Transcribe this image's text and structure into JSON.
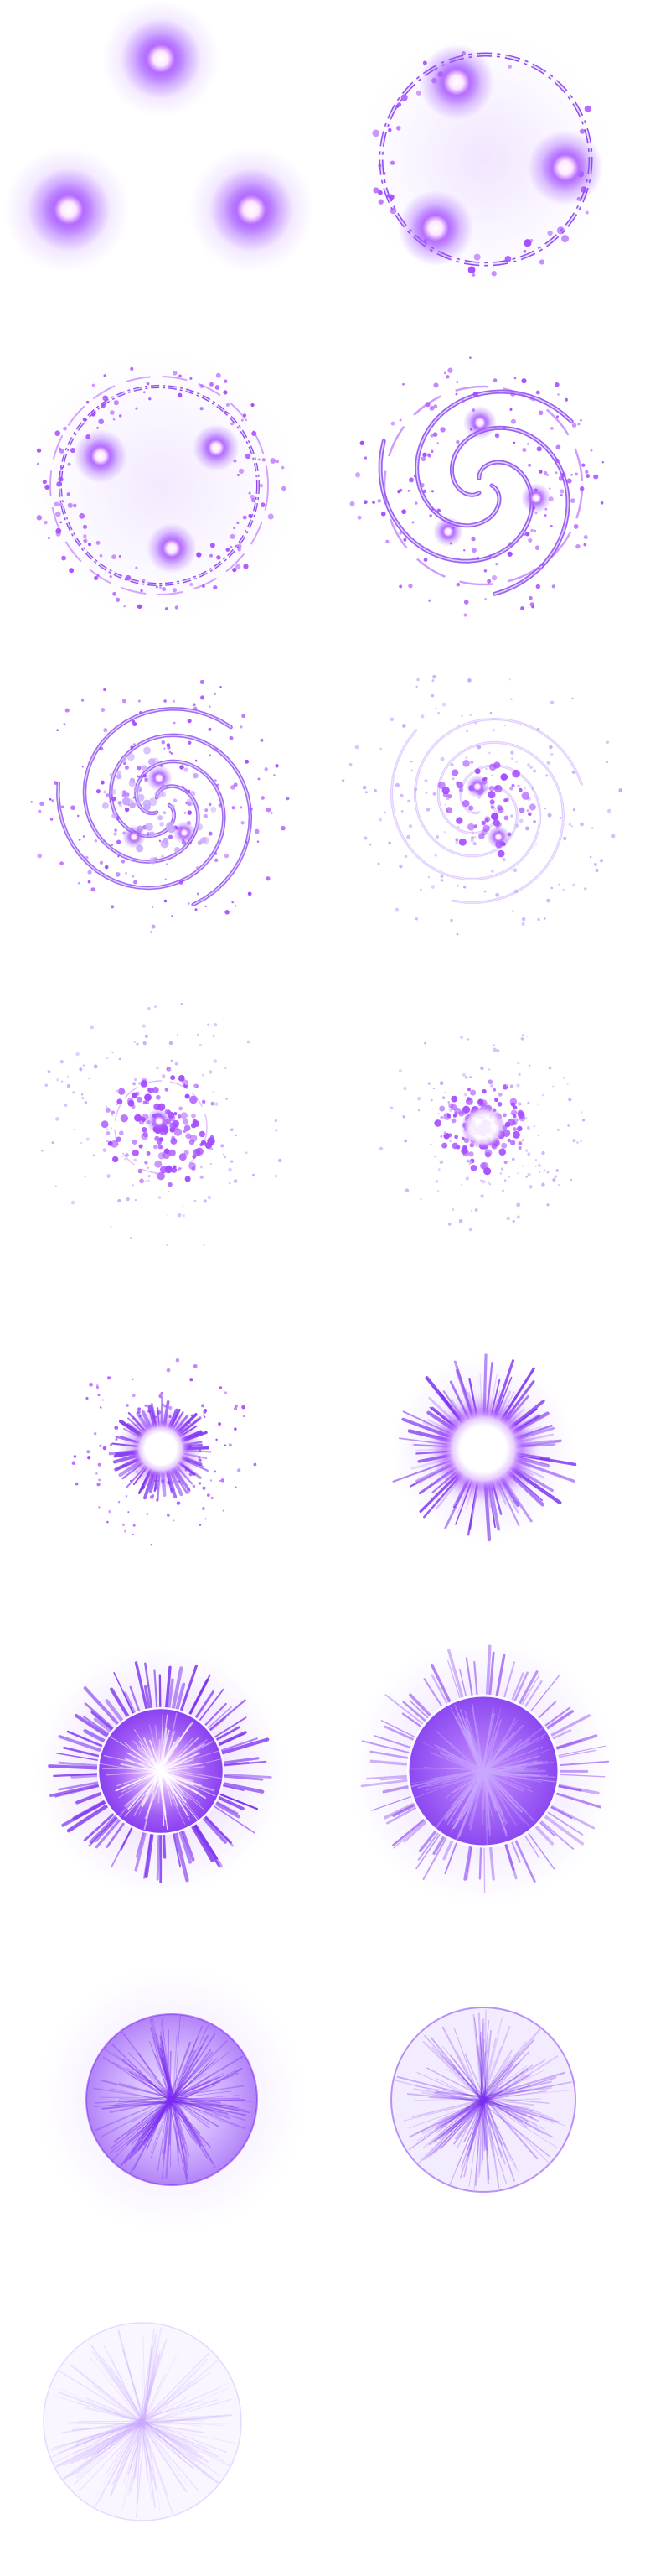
{
  "sprite_sheet": {
    "columns": 2,
    "rows": 8,
    "frame_count": 15,
    "colors": {
      "background": "#ffffff",
      "core": "#ffffff",
      "glow": "#a64dff",
      "deep": "#7a2df0",
      "pale": "#c9a8ff",
      "rim": "#ffffff"
    },
    "frames": [
      {
        "index": 1,
        "stage": "three-orbs"
      },
      {
        "index": 2,
        "stage": "orbs-linked-by-ring"
      },
      {
        "index": 3,
        "stage": "ring-with-particles"
      },
      {
        "index": 4,
        "stage": "swirl-forming"
      },
      {
        "index": 5,
        "stage": "spiral-galaxy"
      },
      {
        "index": 6,
        "stage": "spiral-fading"
      },
      {
        "index": 7,
        "stage": "particle-cluster"
      },
      {
        "index": 8,
        "stage": "particle-cluster-dense"
      },
      {
        "index": 9,
        "stage": "collapsed-core"
      },
      {
        "index": 10,
        "stage": "spiky-burst"
      },
      {
        "index": 11,
        "stage": "bright-sphere-burst"
      },
      {
        "index": 12,
        "stage": "violet-sphere"
      },
      {
        "index": 13,
        "stage": "fading-sphere"
      },
      {
        "index": 14,
        "stage": "pale-sphere"
      },
      {
        "index": 15,
        "stage": "ghost-sphere"
      }
    ]
  }
}
